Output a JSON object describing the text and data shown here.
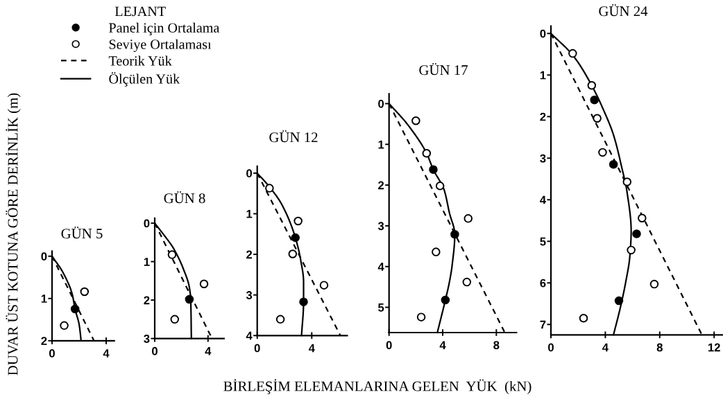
{
  "chart_data": [
    {
      "type": "scatter",
      "title": "GÜN 5",
      "ylabel": "DUVAR ÜST KOTUNA GÖRE DERİNLİK (m)",
      "xlim": [
        0,
        4.6
      ],
      "ylim": [
        2,
        -0.12
      ],
      "xticks": [
        0,
        4
      ],
      "yticks": [
        0,
        1,
        2
      ],
      "series": [
        {
          "marker": "circle",
          "color": "#000000",
          "x": [
            1.7
          ],
          "values": [
            1.25
          ]
        },
        {
          "marker": "circle",
          "color": "#ffffff",
          "x": [
            2.4,
            0.9
          ],
          "values": [
            0.84,
            1.64
          ]
        },
        {
          "type": "line",
          "line_style": "dashed",
          "color": "#000000",
          "x": [
            0,
            3.1
          ],
          "values": [
            0,
            2.0
          ]
        },
        {
          "type": "line",
          "line_style": "solid",
          "color": "#000000",
          "x": [
            0,
            0.8,
            1.5,
            1.7,
            2.0,
            2.15
          ],
          "values": [
            0,
            0.38,
            0.91,
            1.25,
            1.61,
            2.0
          ]
        }
      ]
    },
    {
      "type": "scatter",
      "title": "GÜN 8",
      "legend": "top left",
      "legend_title": "LEJANT",
      "xlim": [
        0,
        5.2
      ],
      "ylim": [
        3,
        -0.13
      ],
      "xticks": [
        0,
        4
      ],
      "yticks": [
        0,
        1,
        2,
        3
      ],
      "series": [
        {
          "name": "Panel için Ortalama",
          "marker": "circle",
          "color": "#000000",
          "x": [
            2.6
          ],
          "values": [
            1.98
          ]
        },
        {
          "name": "Seviye Ortalaması",
          "marker": "circle",
          "color": "#ffffff",
          "x": [
            1.3,
            3.7,
            1.5
          ],
          "values": [
            0.82,
            1.58,
            2.5
          ]
        },
        {
          "name": "Teorik Yük",
          "type": "line",
          "line_style": "dashed",
          "color": "#000000",
          "x": [
            0,
            4.3
          ],
          "values": [
            0,
            3.0
          ]
        },
        {
          "name": "Ölçülen Yük",
          "type": "line",
          "line_style": "solid",
          "color": "#000000",
          "x": [
            0,
            0.65,
            1.4,
            2.15,
            2.6,
            2.7,
            2.75
          ],
          "values": [
            0,
            0.29,
            0.65,
            1.19,
            1.67,
            1.98,
            3.0
          ]
        }
      ]
    },
    {
      "type": "scatter",
      "title": "GÜN 12",
      "xlabel": "BİRLEŞİM ELEMANLARINA GELEN  YÜK  (kN)",
      "xlim": [
        0,
        6.6
      ],
      "ylim": [
        4,
        -0.17
      ],
      "xticks": [
        0,
        4
      ],
      "yticks": [
        0,
        1,
        2,
        3,
        4
      ],
      "series": [
        {
          "marker": "circle",
          "color": "#000000",
          "x": [
            2.8,
            3.4
          ],
          "values": [
            1.59,
            3.17
          ]
        },
        {
          "marker": "circle",
          "color": "#ffffff",
          "x": [
            0.9,
            3.0,
            2.6,
            4.9,
            1.7
          ],
          "values": [
            0.37,
            1.18,
            1.99,
            2.76,
            3.6
          ]
        },
        {
          "type": "line",
          "line_style": "dashed",
          "color": "#000000",
          "x": [
            0,
            6.1
          ],
          "values": [
            0,
            4.0
          ]
        },
        {
          "type": "line",
          "line_style": "solid",
          "color": "#000000",
          "x": [
            0,
            0.9,
            1.8,
            2.8,
            3.2,
            3.4,
            3.4,
            3.25
          ],
          "values": [
            0,
            0.34,
            0.77,
            1.59,
            2.16,
            2.67,
            3.17,
            4.0
          ]
        }
      ]
    },
    {
      "type": "scatter",
      "title": "GÜN 17",
      "xlim": [
        0,
        9.5
      ],
      "ylim": [
        5.62,
        -0.24
      ],
      "xticks": [
        0,
        4,
        8
      ],
      "yticks": [
        0,
        1,
        2,
        3,
        4,
        5
      ],
      "series": [
        {
          "marker": "circle",
          "color": "#000000",
          "x": [
            3.3,
            4.9,
            4.2
          ],
          "values": [
            1.62,
            3.21,
            4.82
          ]
        },
        {
          "marker": "circle",
          "color": "#ffffff",
          "x": [
            2.0,
            2.8,
            3.8,
            5.9,
            3.5,
            5.8,
            2.4
          ],
          "values": [
            0.42,
            1.22,
            2.02,
            2.82,
            3.64,
            4.38,
            5.24
          ]
        },
        {
          "type": "line",
          "line_style": "dashed",
          "color": "#000000",
          "x": [
            0,
            8.6
          ],
          "values": [
            0,
            5.6
          ]
        },
        {
          "type": "line",
          "line_style": "solid",
          "color": "#000000",
          "x": [
            0,
            1.4,
            2.8,
            3.3,
            4.1,
            4.5,
            4.9,
            4.7,
            4.5,
            4.2,
            3.6
          ],
          "values": [
            0,
            0.52,
            1.22,
            1.62,
            2.11,
            2.68,
            3.21,
            3.98,
            4.38,
            4.82,
            5.62
          ]
        }
      ]
    },
    {
      "type": "scatter",
      "title": "GÜN 24",
      "xlim": [
        0,
        12.6
      ],
      "ylim": [
        7.25,
        -0.18
      ],
      "xticks": [
        0,
        4,
        8,
        12
      ],
      "yticks": [
        0,
        1,
        2,
        3,
        4,
        5,
        6,
        7
      ],
      "series": [
        {
          "marker": "circle",
          "color": "#000000",
          "x": [
            3.2,
            4.6,
            6.3,
            5.0
          ],
          "values": [
            1.6,
            3.15,
            4.82,
            6.43
          ]
        },
        {
          "marker": "circle",
          "color": "#ffffff",
          "x": [
            1.6,
            3.0,
            3.4,
            3.8,
            5.6,
            6.7,
            5.9,
            7.6,
            2.4
          ],
          "values": [
            0.48,
            1.25,
            2.04,
            2.86,
            3.57,
            4.44,
            5.21,
            6.03,
            6.85
          ]
        },
        {
          "type": "line",
          "line_style": "dashed",
          "color": "#000000",
          "x": [
            0,
            11.1
          ],
          "values": [
            0,
            7.25
          ]
        },
        {
          "type": "line",
          "line_style": "solid",
          "color": "#000000",
          "x": [
            0,
            1.6,
            3.0,
            3.8,
            4.6,
            5.2,
            5.6,
            5.9,
            5.8,
            5.5,
            5.1,
            4.6
          ],
          "values": [
            0,
            0.52,
            1.25,
            1.79,
            2.44,
            3.21,
            3.82,
            4.75,
            5.37,
            5.98,
            6.6,
            7.25
          ]
        }
      ]
    }
  ]
}
